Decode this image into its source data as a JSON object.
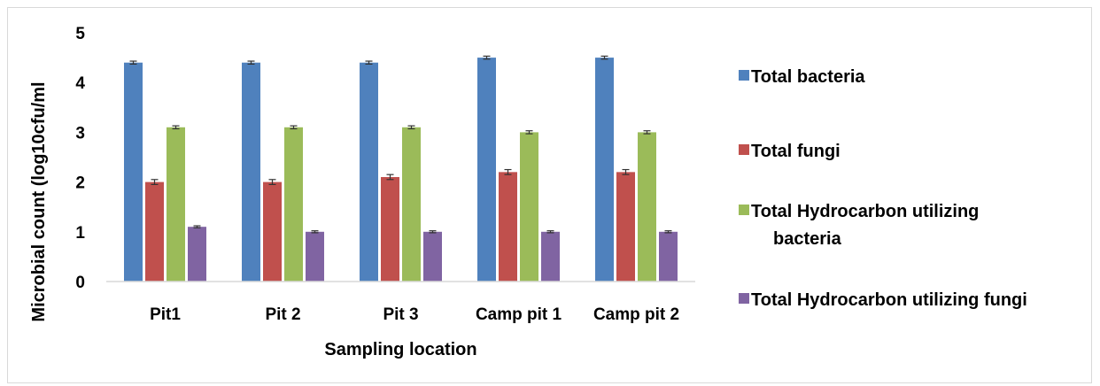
{
  "chart_data": {
    "type": "bar",
    "xlabel": "Sampling location",
    "ylabel": "Microbial count (log10cfu/ml",
    "ylim": [
      0,
      5
    ],
    "yticks": [
      "0",
      "1",
      "2",
      "3",
      "4",
      "5"
    ],
    "categories": [
      "Pit1",
      "Pit 2",
      "Pit 3",
      "Camp pit 1",
      "Camp pit 2"
    ],
    "series": [
      {
        "name": "Total bacteria",
        "color": "#4F81BD",
        "values": [
          4.4,
          4.4,
          4.4,
          4.5,
          4.5
        ],
        "errors": [
          0.03,
          0.03,
          0.03,
          0.03,
          0.03
        ]
      },
      {
        "name": "Total fungi",
        "color": "#C0504D",
        "values": [
          2.0,
          2.0,
          2.1,
          2.2,
          2.2
        ],
        "errors": [
          0.05,
          0.05,
          0.05,
          0.05,
          0.05
        ]
      },
      {
        "name": "Total Hydrocarbon utilizing bacteria",
        "color": "#9BBB59",
        "values": [
          3.1,
          3.1,
          3.1,
          3.0,
          3.0
        ],
        "errors": [
          0.03,
          0.03,
          0.03,
          0.03,
          0.03
        ]
      },
      {
        "name": "Total Hydrocarbon utilizing fungi",
        "color": "#8064A2",
        "values": [
          1.1,
          1.0,
          1.0,
          1.0,
          1.0
        ],
        "errors": [
          0.02,
          0.02,
          0.02,
          0.02,
          0.02
        ]
      }
    ],
    "legend": {
      "placement": "right",
      "entries": [
        [
          "Total bacteria"
        ],
        [
          "Total fungi"
        ],
        [
          "Total Hydrocarbon utilizing",
          "bacteria"
        ],
        [
          "Total Hydrocarbon utilizing fungi"
        ]
      ]
    },
    "grid": false
  }
}
